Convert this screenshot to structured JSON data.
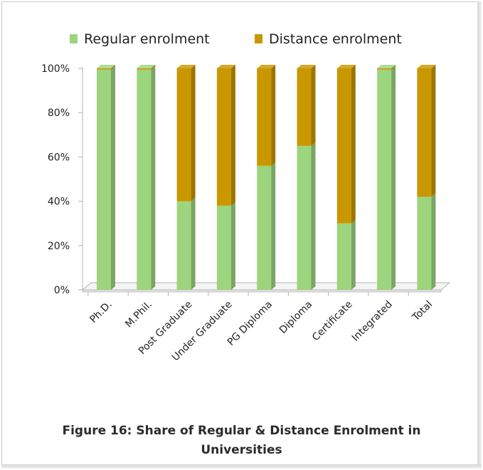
{
  "chart_data": {
    "type": "bar",
    "stacked": true,
    "percent_stacked": true,
    "categories": [
      "Ph.D.",
      "M.Phil.",
      "Post Graduate",
      "Under Graduate",
      "PG Diploma",
      "Diploma",
      "Certificate",
      "Integrated",
      "Total"
    ],
    "series": [
      {
        "name": "Regular enrolment",
        "color": "#9dd47e",
        "values": [
          99.5,
          99.5,
          40,
          38,
          56,
          65,
          30,
          99.5,
          42
        ]
      },
      {
        "name": "Distance enrolment",
        "color": "#c99700",
        "values": [
          0.5,
          0.5,
          60,
          62,
          44,
          35,
          70,
          0.5,
          58
        ]
      }
    ],
    "yticks": [
      "0%",
      "20%",
      "40%",
      "60%",
      "80%",
      "100%"
    ],
    "ylim": [
      0,
      100
    ],
    "legend_position": "top",
    "grid": false
  },
  "caption": {
    "line1": "Figure 16: Share of Regular & Distance Enrolment in",
    "line2": "Universities"
  }
}
